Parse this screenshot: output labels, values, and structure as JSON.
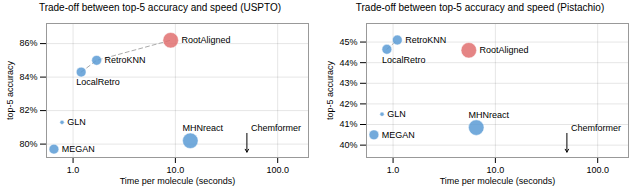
{
  "chart_data": [
    {
      "type": "scatter",
      "title": "Trade-off between top-5 accuracy and speed (USPTO)",
      "x_label": "Time per molecule (seconds)",
      "y_label": "top-5 accuracy",
      "log": "x",
      "grid": true,
      "xlim": [
        0.55,
        200
      ],
      "ylim": [
        79.2,
        87.2
      ],
      "xticks": [
        {
          "value": 1.0,
          "label": "1.0"
        },
        {
          "value": 10.0,
          "label": "10.0"
        },
        {
          "value": 100.0,
          "label": "100.0"
        }
      ],
      "yticks": [
        {
          "value": 80,
          "label": "80%"
        },
        {
          "value": 82,
          "label": "82%"
        },
        {
          "value": 84,
          "label": "84%"
        },
        {
          "value": 86,
          "label": "86%"
        }
      ],
      "labels": [
        "GLN",
        "MEGAN",
        "RetroKNN",
        "LocalRetro",
        "MHNreact",
        "RootAligned"
      ],
      "x": [
        0.78,
        0.65,
        1.7,
        1.2,
        14.0,
        9.0
      ],
      "values": [
        81.3,
        79.7,
        85.0,
        84.3,
        80.2,
        86.2
      ],
      "sizes": [
        15,
        80,
        80,
        80,
        200,
        200
      ],
      "colors": [
        "#5b9bd5",
        "#5b9bd5",
        "#5b9bd5",
        "#5b9bd5",
        "#5b9bd5",
        "#e07070"
      ],
      "pareto_frontier": {
        "x": [
          1.2,
          1.7,
          9.0
        ],
        "values": [
          84.3,
          85.0,
          86.2
        ],
        "color": "#aaaaaa",
        "line_style": "dashed"
      },
      "annotations": [
        {
          "text": "Chemformer",
          "x": 50.0,
          "marker": "arrow"
        }
      ]
    },
    {
      "type": "scatter",
      "title": "Trade-off between top-5 accuracy and speed (Pistachio)",
      "x_label": "Time per molecule (seconds)",
      "y_label": "top-5 accuracy",
      "log": "x",
      "grid": true,
      "xlim": [
        0.55,
        200
      ],
      "ylim": [
        39.4,
        45.9
      ],
      "xticks": [
        {
          "value": 1.0,
          "label": "1.0"
        },
        {
          "value": 10.0,
          "label": "10.0"
        },
        {
          "value": 100.0,
          "label": "100.0"
        }
      ],
      "yticks": [
        {
          "value": 40,
          "label": "40%"
        },
        {
          "value": 41,
          "label": "41%"
        },
        {
          "value": 42,
          "label": "42%"
        },
        {
          "value": 43,
          "label": "43%"
        },
        {
          "value": 44,
          "label": "44%"
        },
        {
          "value": 45,
          "label": "45%"
        }
      ],
      "labels": [
        "GLN",
        "MEGAN",
        "RetroKNN",
        "LocalRetro",
        "MHNreact",
        "RootAligned"
      ],
      "x": [
        0.78,
        0.65,
        1.1,
        0.87,
        6.5,
        5.5
      ],
      "values": [
        41.5,
        40.5,
        45.1,
        44.65,
        40.85,
        44.6
      ],
      "sizes": [
        15,
        80,
        80,
        80,
        200,
        200
      ],
      "colors": [
        "#5b9bd5",
        "#5b9bd5",
        "#5b9bd5",
        "#5b9bd5",
        "#5b9bd5",
        "#e07070"
      ],
      "pareto_frontier": {
        "x": [
          0.87,
          1.1
        ],
        "values": [
          44.65,
          45.1
        ],
        "color": "#aaaaaa",
        "line_style": "dashed"
      },
      "annotations": [
        {
          "text": "Chemformer",
          "x": 50.0,
          "marker": "arrow"
        }
      ]
    }
  ]
}
